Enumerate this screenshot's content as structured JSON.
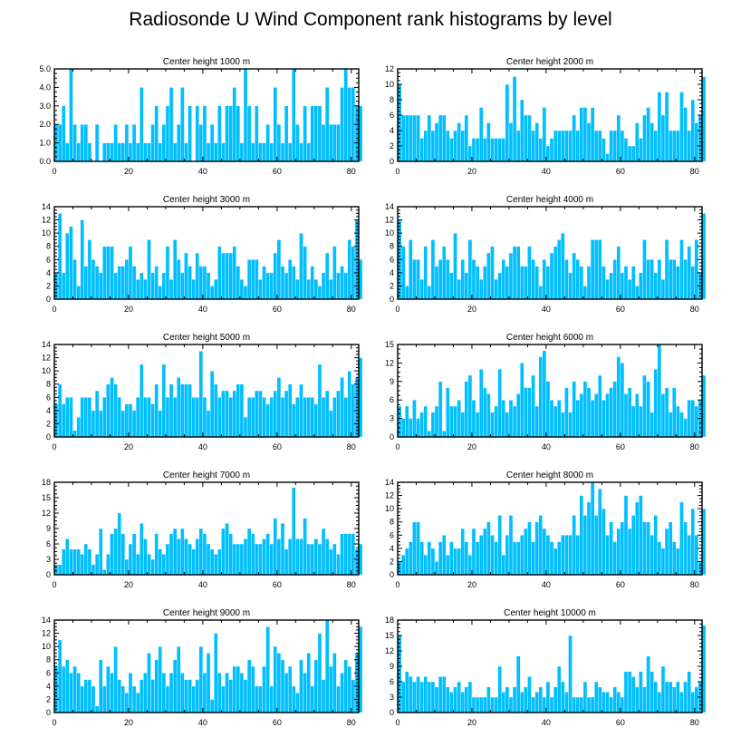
{
  "title": "Radiosonde U Wind Component rank histograms by level",
  "colors": {
    "bar": "#00BFFF",
    "bar_edge": "#ffffff",
    "axis": "#000000"
  },
  "chart_data": [
    {
      "type": "bar",
      "title": "Center height 1000 m",
      "xlim": [
        0,
        82
      ],
      "ylim": [
        0,
        5
      ],
      "xticks": [
        "0",
        "20",
        "40",
        "60",
        "80"
      ],
      "yticks": [
        "0.0",
        "1.0",
        "2.0",
        "3.0",
        "4.0",
        "5.0"
      ],
      "values": [
        2,
        2,
        3,
        1,
        5,
        2,
        1,
        2,
        2,
        1,
        0,
        2,
        0,
        1,
        1,
        1,
        2,
        1,
        1,
        2,
        1,
        2,
        1,
        4,
        1,
        1,
        2,
        3,
        1,
        2,
        3,
        4,
        1,
        2,
        4,
        1,
        3,
        0,
        3,
        2,
        3,
        1,
        2,
        1,
        3,
        1,
        3,
        3,
        4,
        3,
        1,
        5,
        3,
        1,
        3,
        1,
        1,
        2,
        1,
        4,
        2,
        1,
        3,
        1,
        5,
        2,
        1,
        3,
        1,
        3,
        3,
        3,
        2,
        4,
        2,
        2,
        2,
        4,
        5,
        4,
        4,
        3,
        3
      ]
    },
    {
      "type": "bar",
      "title": "Center height 2000 m",
      "xlim": [
        0,
        82
      ],
      "ylim": [
        0,
        12
      ],
      "xticks": [
        "0",
        "20",
        "40",
        "60",
        "80"
      ],
      "yticks": [
        "0",
        "2",
        "4",
        "6",
        "8",
        "10",
        "12"
      ],
      "values": [
        10,
        6,
        6,
        6,
        6,
        6,
        3,
        4,
        6,
        4,
        5,
        6,
        6,
        4,
        3,
        4,
        5,
        4,
        6,
        2,
        3,
        3,
        7,
        3,
        5,
        3,
        3,
        3,
        3,
        10,
        5,
        11,
        4,
        8,
        6,
        6,
        4,
        5,
        3,
        7,
        2,
        3,
        4,
        4,
        4,
        4,
        4,
        6,
        4,
        7,
        7,
        5,
        7,
        4,
        4,
        3,
        1,
        4,
        4,
        6,
        4,
        3,
        2,
        2,
        5,
        3,
        6,
        7,
        5,
        4,
        9,
        6,
        9,
        4,
        4,
        4,
        9,
        7,
        4,
        8,
        5,
        6,
        11
      ]
    },
    {
      "type": "bar",
      "title": "Center height 3000 m",
      "xlim": [
        0,
        82
      ],
      "ylim": [
        0,
        14
      ],
      "xticks": [
        "0",
        "20",
        "40",
        "60",
        "80"
      ],
      "yticks": [
        "0",
        "2",
        "4",
        "6",
        "8",
        "10",
        "12",
        "14"
      ],
      "values": [
        4,
        13,
        4,
        10,
        11,
        6,
        2,
        12,
        5,
        9,
        6,
        5,
        4,
        8,
        8,
        8,
        4,
        5,
        5,
        6,
        8,
        5,
        3,
        4,
        3,
        9,
        4,
        5,
        2,
        4,
        8,
        3,
        9,
        6,
        4,
        7,
        5,
        3,
        7,
        5,
        5,
        4,
        2,
        3,
        8,
        7,
        7,
        7,
        8,
        5,
        3,
        2,
        6,
        6,
        6,
        3,
        5,
        4,
        4,
        7,
        9,
        5,
        4,
        6,
        5,
        3,
        10,
        8,
        3,
        5,
        3,
        2,
        4,
        7,
        3,
        8,
        4,
        5,
        4,
        9,
        8,
        12,
        6
      ]
    },
    {
      "type": "bar",
      "title": "Center height 4000 m",
      "xlim": [
        0,
        82
      ],
      "ylim": [
        0,
        14
      ],
      "xticks": [
        "0",
        "20",
        "40",
        "60",
        "80"
      ],
      "yticks": [
        "0",
        "2",
        "4",
        "6",
        "8",
        "10",
        "12",
        "14"
      ],
      "values": [
        12,
        8,
        2,
        9,
        6,
        6,
        3,
        8,
        2,
        9,
        5,
        6,
        8,
        6,
        4,
        10,
        3,
        6,
        4,
        9,
        6,
        5,
        3,
        5,
        7,
        8,
        3,
        4,
        6,
        5,
        7,
        8,
        8,
        5,
        5,
        8,
        6,
        5,
        2,
        6,
        5,
        7,
        8,
        9,
        10,
        6,
        4,
        7,
        6,
        5,
        2,
        5,
        9,
        9,
        9,
        5,
        3,
        4,
        6,
        8,
        4,
        5,
        3,
        5,
        2,
        4,
        9,
        6,
        6,
        4,
        6,
        3,
        9,
        6,
        6,
        5,
        9,
        6,
        8,
        5,
        9,
        4,
        13
      ]
    },
    {
      "type": "bar",
      "title": "Center height 5000 m",
      "xlim": [
        0,
        82
      ],
      "ylim": [
        0,
        14
      ],
      "xticks": [
        "0",
        "20",
        "40",
        "60",
        "80"
      ],
      "yticks": [
        "0",
        "2",
        "4",
        "6",
        "8",
        "10",
        "12",
        "14"
      ],
      "values": [
        5,
        8,
        5,
        6,
        6,
        1,
        3,
        6,
        6,
        6,
        4,
        7,
        4,
        6,
        8,
        9,
        8,
        6,
        4,
        5,
        5,
        4,
        6,
        11,
        6,
        6,
        5,
        8,
        4,
        11,
        6,
        8,
        6,
        9,
        8,
        8,
        8,
        6,
        6,
        13,
        6,
        4,
        10,
        8,
        6,
        7,
        7,
        6,
        7,
        8,
        8,
        3,
        6,
        6,
        7,
        7,
        6,
        5,
        6,
        7,
        9,
        6,
        7,
        8,
        5,
        6,
        8,
        6,
        6,
        6,
        5,
        11,
        6,
        7,
        4,
        6,
        7,
        9,
        6,
        10,
        8,
        9,
        12
      ]
    },
    {
      "type": "bar",
      "title": "Center height 6000 m",
      "xlim": [
        0,
        82
      ],
      "ylim": [
        0,
        15
      ],
      "xticks": [
        "0",
        "20",
        "40",
        "60",
        "80"
      ],
      "yticks": [
        "0",
        "3",
        "6",
        "9",
        "12",
        "15"
      ],
      "values": [
        5,
        3,
        5,
        3,
        6,
        3,
        4,
        5,
        1,
        4,
        5,
        9,
        1,
        8,
        5,
        5,
        6,
        4,
        9,
        10,
        6,
        4,
        11,
        8,
        7,
        4,
        5,
        11,
        6,
        4,
        6,
        5,
        7,
        12,
        8,
        8,
        10,
        5,
        13,
        14,
        9,
        6,
        5,
        6,
        4,
        8,
        4,
        9,
        6,
        7,
        9,
        8,
        6,
        7,
        10,
        6,
        7,
        8,
        9,
        13,
        12,
        7,
        8,
        5,
        7,
        5,
        10,
        9,
        4,
        11,
        15,
        7,
        8,
        4,
        8,
        5,
        4,
        3,
        6,
        6,
        5,
        6,
        10
      ]
    },
    {
      "type": "bar",
      "title": "Center height 7000 m",
      "xlim": [
        0,
        82
      ],
      "ylim": [
        0,
        18
      ],
      "xticks": [
        "0",
        "20",
        "40",
        "60",
        "80"
      ],
      "yticks": [
        "0",
        "3",
        "6",
        "9",
        "12",
        "15",
        "18"
      ],
      "values": [
        2,
        2,
        5,
        7,
        5,
        5,
        5,
        4,
        6,
        5,
        2,
        4,
        9,
        1,
        4,
        8,
        9,
        12,
        8,
        3,
        6,
        8,
        4,
        10,
        7,
        4,
        3,
        8,
        5,
        4,
        6,
        8,
        9,
        7,
        9,
        7,
        6,
        5,
        7,
        9,
        8,
        6,
        5,
        4,
        5,
        9,
        10,
        8,
        6,
        6,
        6,
        7,
        9,
        8,
        6,
        6,
        7,
        8,
        6,
        11,
        7,
        10,
        5,
        7,
        17,
        7,
        7,
        11,
        6,
        6,
        7,
        6,
        9,
        7,
        5,
        6,
        4,
        8,
        8,
        8,
        8,
        5,
        6
      ]
    },
    {
      "type": "bar",
      "title": "Center height 8000 m",
      "xlim": [
        0,
        82
      ],
      "ylim": [
        0,
        14
      ],
      "xticks": [
        "0",
        "20",
        "40",
        "60",
        "80"
      ],
      "yticks": [
        "0",
        "2",
        "4",
        "6",
        "8",
        "10",
        "12",
        "14"
      ],
      "values": [
        2,
        3,
        4,
        5,
        8,
        8,
        5,
        3,
        5,
        4,
        2,
        5,
        6,
        3,
        5,
        4,
        4,
        7,
        5,
        3,
        7,
        5,
        6,
        7,
        8,
        6,
        5,
        9,
        3,
        6,
        9,
        5,
        5,
        6,
        7,
        8,
        5,
        8,
        9,
        7,
        6,
        5,
        4,
        5,
        6,
        6,
        6,
        9,
        6,
        12,
        9,
        11,
        14,
        9,
        13,
        10,
        6,
        8,
        5,
        7,
        8,
        12,
        7,
        9,
        11,
        12,
        8,
        8,
        6,
        9,
        5,
        4,
        7,
        8,
        5,
        4,
        11,
        8,
        6,
        10,
        6,
        2,
        10
      ]
    },
    {
      "type": "bar",
      "title": "Center height 9000 m",
      "xlim": [
        0,
        82
      ],
      "ylim": [
        0,
        14
      ],
      "xticks": [
        "0",
        "20",
        "40",
        "60",
        "80"
      ],
      "yticks": [
        "0",
        "2",
        "4",
        "6",
        "8",
        "10",
        "12",
        "14"
      ],
      "values": [
        7,
        11,
        7,
        8,
        6,
        7,
        6,
        4,
        5,
        5,
        4,
        1,
        8,
        4,
        7,
        6,
        10,
        5,
        4,
        3,
        6,
        4,
        3,
        5,
        6,
        9,
        5,
        8,
        10,
        6,
        4,
        6,
        8,
        10,
        6,
        5,
        5,
        4,
        5,
        10,
        6,
        9,
        2,
        12,
        6,
        4,
        6,
        5,
        7,
        7,
        6,
        5,
        8,
        7,
        4,
        4,
        7,
        13,
        4,
        10,
        9,
        8,
        6,
        7,
        4,
        3,
        8,
        6,
        9,
        4,
        8,
        12,
        5,
        14,
        7,
        9,
        4,
        6,
        8,
        7,
        5,
        9,
        13
      ]
    },
    {
      "type": "bar",
      "title": "Center height 10000 m",
      "xlim": [
        0,
        82
      ],
      "ylim": [
        0,
        18
      ],
      "xticks": [
        "0",
        "20",
        "40",
        "60",
        "80"
      ],
      "yticks": [
        "0",
        "3",
        "6",
        "9",
        "12",
        "15",
        "18"
      ],
      "values": [
        15,
        6,
        8,
        7,
        6,
        7,
        6,
        7,
        6,
        6,
        5,
        7,
        7,
        5,
        4,
        5,
        6,
        4,
        5,
        6,
        3,
        3,
        3,
        3,
        5,
        3,
        3,
        9,
        4,
        5,
        3,
        5,
        11,
        4,
        5,
        7,
        3,
        4,
        5,
        3,
        6,
        3,
        5,
        9,
        6,
        4,
        15,
        3,
        3,
        3,
        6,
        3,
        3,
        6,
        5,
        4,
        4,
        3,
        5,
        4,
        3,
        8,
        8,
        7,
        5,
        8,
        5,
        11,
        8,
        6,
        4,
        9,
        6,
        6,
        5,
        6,
        4,
        6,
        8,
        4,
        5,
        6,
        17
      ]
    }
  ]
}
